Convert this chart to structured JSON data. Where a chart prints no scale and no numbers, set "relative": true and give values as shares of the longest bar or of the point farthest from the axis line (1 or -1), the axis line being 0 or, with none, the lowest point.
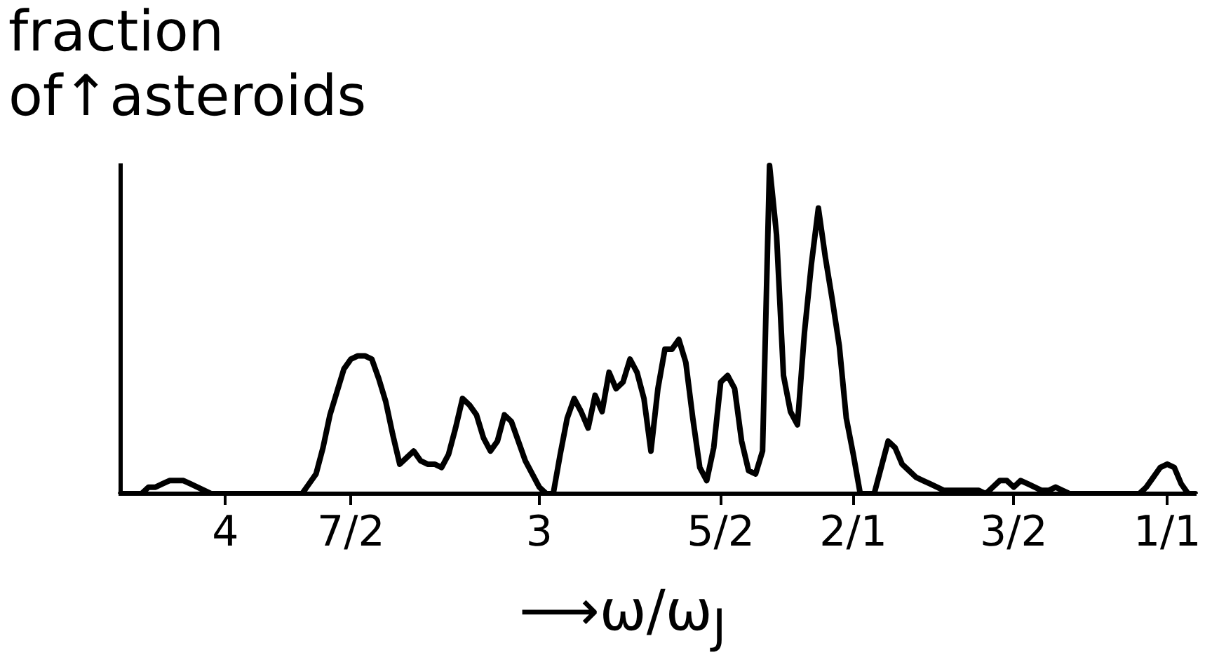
{
  "chart_data": {
    "type": "line",
    "ylabel": "fraction of↑asteroids",
    "xlabel": "⟶ω/ω$_{J}$",
    "relative": true,
    "color": "#000000",
    "categories": [
      null,
      null,
      null,
      null,
      null,
      null,
      null,
      null,
      null,
      null,
      null,
      null,
      null,
      null,
      null,
      "4",
      null,
      null,
      null,
      null,
      null,
      null,
      null,
      null,
      null,
      null,
      null,
      null,
      null,
      null,
      null,
      null,
      null,
      "7/2",
      null,
      null,
      null,
      null,
      null,
      null,
      null,
      null,
      null,
      null,
      null,
      null,
      null,
      null,
      null,
      null,
      null,
      null,
      null,
      null,
      null,
      null,
      null,
      null,
      null,
      null,
      "3",
      null,
      null,
      null,
      null,
      null,
      null,
      null,
      null,
      null,
      null,
      null,
      null,
      null,
      null,
      null,
      null,
      null,
      null,
      null,
      null,
      null,
      null,
      null,
      null,
      null,
      "5/2",
      null,
      null,
      null,
      null,
      null,
      null,
      null,
      null,
      null,
      null,
      null,
      null,
      null,
      null,
      null,
      null,
      null,
      null,
      "2/1",
      null,
      null,
      null,
      null,
      null,
      null,
      null,
      null,
      null,
      null,
      null,
      null,
      null,
      null,
      null,
      null,
      null,
      null,
      null,
      null,
      null,
      null,
      "3/2",
      null,
      null,
      null,
      null,
      null,
      null,
      null,
      null,
      null,
      null,
      null,
      null,
      null,
      null,
      null,
      null,
      null,
      null,
      null,
      null,
      null,
      "1/1",
      null,
      null,
      null,
      null
    ],
    "values": [
      0,
      0,
      0,
      0,
      0.02,
      0.02,
      0.03,
      0.04,
      0.04,
      0.04,
      0.03,
      0.02,
      0.01,
      0,
      0,
      0,
      0,
      0,
      0,
      0,
      0,
      0,
      0,
      0,
      0,
      0,
      0,
      0.03,
      0.06,
      0.14,
      0.24,
      0.31,
      0.38,
      0.41,
      0.42,
      0.42,
      0.41,
      0.35,
      0.28,
      0.18,
      0.09,
      0.11,
      0.13,
      0.1,
      0.09,
      0.09,
      0.08,
      0.12,
      0.2,
      0.29,
      0.27,
      0.24,
      0.17,
      0.13,
      0.16,
      0.24,
      0.22,
      0.16,
      0.1,
      0.06,
      0.02,
      0,
      0,
      0.12,
      0.23,
      0.29,
      0.25,
      0.2,
      0.3,
      0.25,
      0.37,
      0.32,
      0.34,
      0.41,
      0.37,
      0.29,
      0.13,
      0.32,
      0.44,
      0.44,
      0.47,
      0.4,
      0.23,
      0.08,
      0.04,
      0.14,
      0.34,
      0.36,
      0.32,
      0.16,
      0.07,
      0.06,
      0.13,
      1,
      0.79,
      0.36,
      0.25,
      0.21,
      0.49,
      0.7,
      0.87,
      0.72,
      0.59,
      0.45,
      0.23,
      0.12,
      0,
      0,
      0,
      0.08,
      0.16,
      0.14,
      0.09,
      0.07,
      0.05,
      0.04,
      0.03,
      0.02,
      0.01,
      0.01,
      0.01,
      0.01,
      0.01,
      0.01,
      0,
      0.02,
      0.04,
      0.04,
      0.02,
      0.04,
      0.03,
      0.02,
      0.01,
      0.01,
      0.02,
      0.01,
      0,
      0,
      0,
      0,
      0,
      0,
      0,
      0,
      0,
      0,
      0,
      0.02,
      0.05,
      0.08,
      0.09,
      0.08,
      0.03,
      0,
      0
    ]
  }
}
